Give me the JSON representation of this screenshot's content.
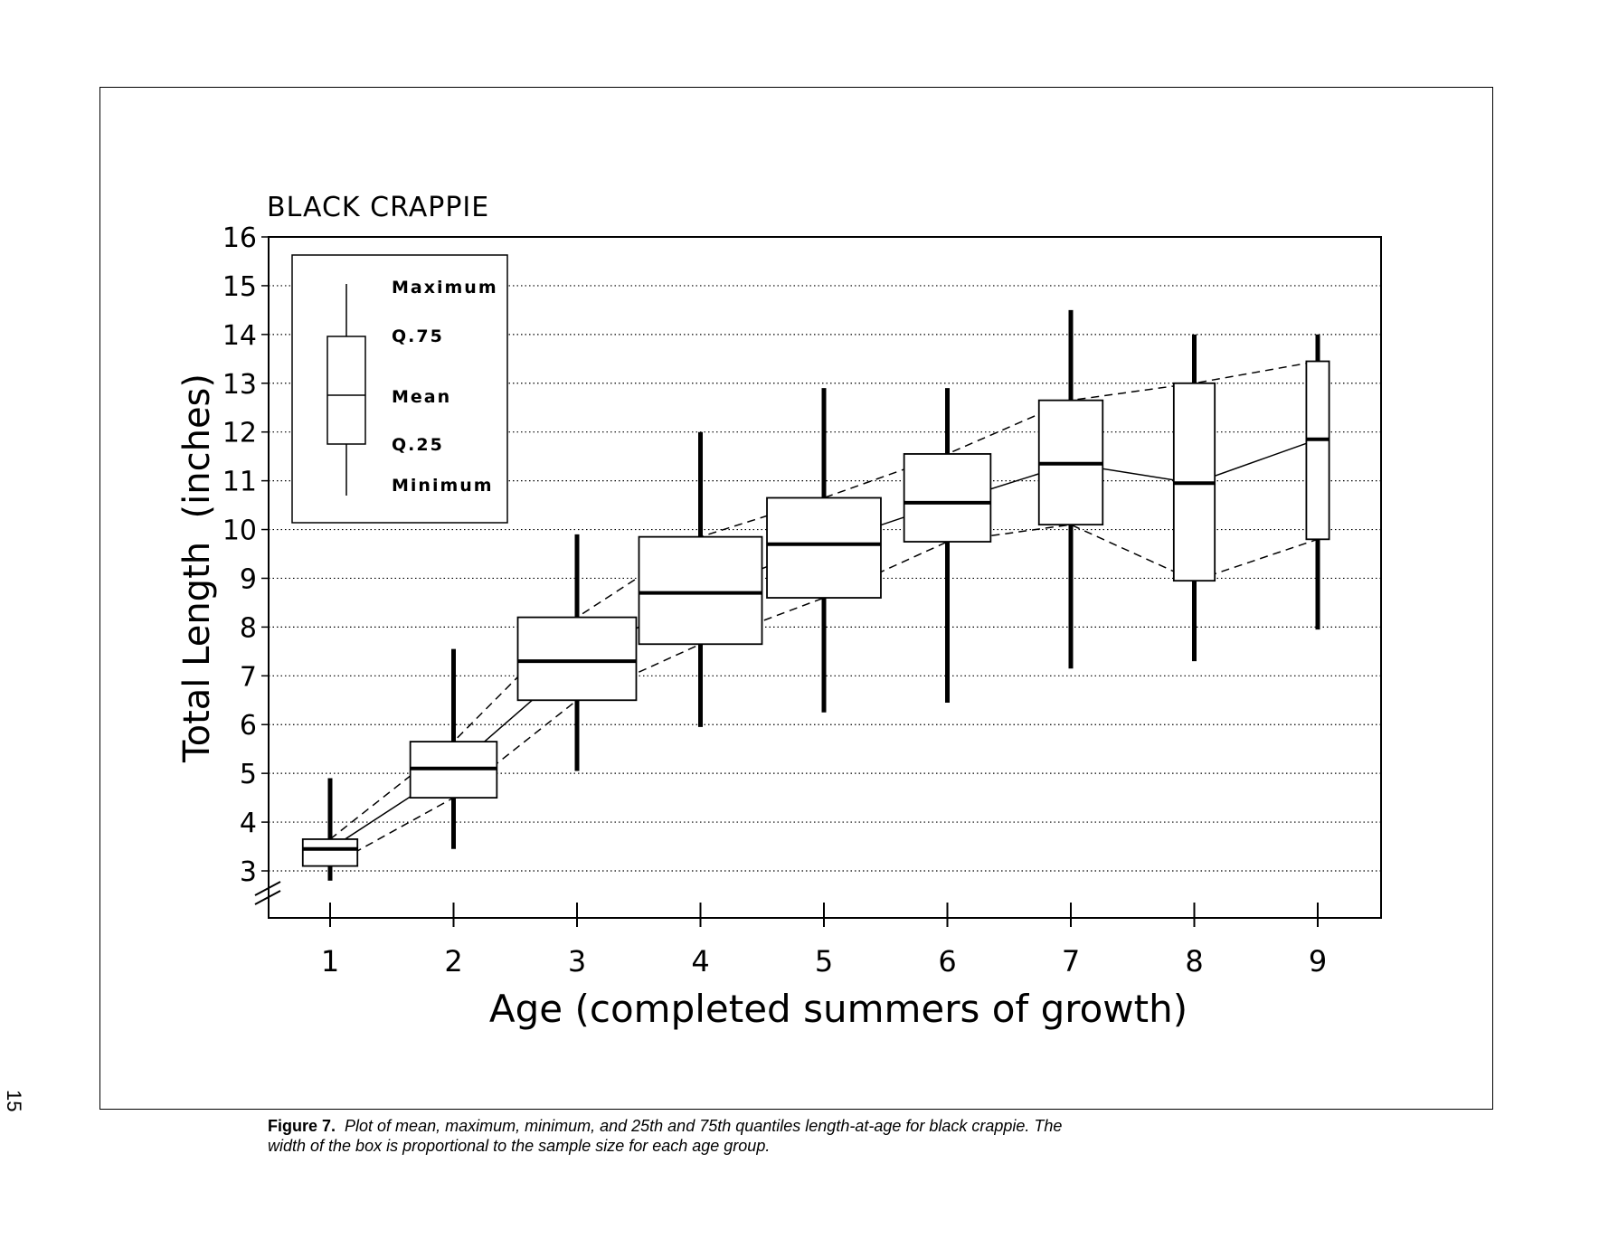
{
  "page_number": "15",
  "caption": {
    "label": "Figure 7.",
    "text": "Plot of mean, maximum, minimum, and 25th and 75th quantiles length-at-age for black crappie.  The width of the box is proportional to the sample size for each age group."
  },
  "legend": {
    "maximum": "Maximum",
    "q75": "Q.75",
    "mean": "Mean",
    "q25": "Q.25",
    "minimum": "Minimum"
  },
  "chart_data": {
    "type": "boxplot",
    "title": "BLACK CRAPPIE",
    "xlabel": "Age (completed summers of growth)",
    "ylabel": "Total Length  (inches)",
    "ylim": [
      2,
      16
    ],
    "yticks": [
      3,
      4,
      5,
      6,
      7,
      8,
      9,
      10,
      11,
      12,
      13,
      14,
      15,
      16
    ],
    "xticks": [
      1,
      2,
      3,
      4,
      5,
      6,
      7,
      8,
      9
    ],
    "grid": "horizontal dotted",
    "legend_placement": "top-left",
    "series": [
      {
        "age": 1,
        "min": 2.8,
        "q25": 3.1,
        "mean": 3.45,
        "q75": 3.65,
        "max": 4.9,
        "relative_width": 0.12
      },
      {
        "age": 2,
        "min": 3.45,
        "q25": 4.5,
        "mean": 5.1,
        "q75": 5.65,
        "max": 7.55,
        "relative_width": 0.19
      },
      {
        "age": 3,
        "min": 5.05,
        "q25": 6.5,
        "mean": 7.3,
        "q75": 8.2,
        "max": 9.9,
        "relative_width": 0.26
      },
      {
        "age": 4,
        "min": 5.95,
        "q25": 7.65,
        "mean": 8.7,
        "q75": 9.85,
        "max": 12.0,
        "relative_width": 0.27
      },
      {
        "age": 5,
        "min": 6.25,
        "q25": 8.6,
        "mean": 9.7,
        "q75": 10.65,
        "max": 12.9,
        "relative_width": 0.25
      },
      {
        "age": 6,
        "min": 6.45,
        "q25": 9.75,
        "mean": 10.55,
        "q75": 11.55,
        "max": 12.9,
        "relative_width": 0.19
      },
      {
        "age": 7,
        "min": 7.15,
        "q25": 10.1,
        "mean": 11.35,
        "q75": 12.65,
        "max": 14.5,
        "relative_width": 0.14
      },
      {
        "age": 8,
        "min": 7.3,
        "q25": 8.95,
        "mean": 10.95,
        "q75": 13.0,
        "max": 14.0,
        "relative_width": 0.09
      },
      {
        "age": 9,
        "min": 7.95,
        "q25": 9.8,
        "mean": 11.85,
        "q75": 13.45,
        "max": 14.0,
        "relative_width": 0.05
      }
    ]
  }
}
